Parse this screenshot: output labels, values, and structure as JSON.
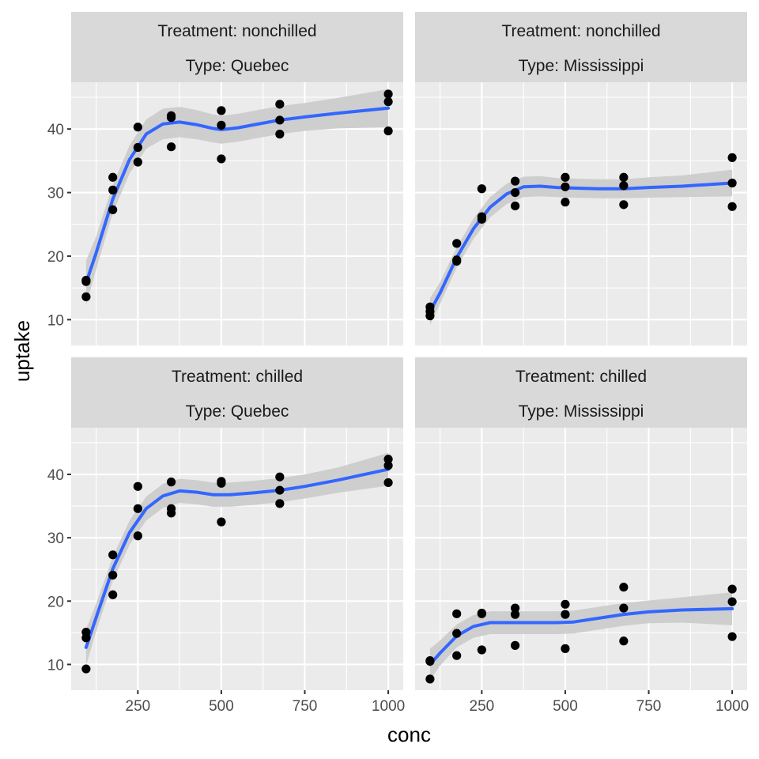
{
  "chart_data": {
    "type": "scatter",
    "xlabel": "conc",
    "ylabel": "uptake",
    "xlim": [
      95,
      1000
    ],
    "ylim": [
      7.8,
      45.5
    ],
    "x_ticks": [
      250,
      500,
      750,
      1000
    ],
    "y_ticks": [
      10,
      20,
      30,
      40
    ],
    "grid": true,
    "smooth": {
      "color": "#3366ff",
      "band_color": "#cccccc"
    },
    "panels": [
      {
        "row": 0,
        "col": 0,
        "strip": [
          "Treatment: nonchilled",
          "Type: Quebec"
        ],
        "points": [
          [
            95,
            16.0
          ],
          [
            95,
            16.2
          ],
          [
            95,
            13.6
          ],
          [
            175,
            30.4
          ],
          [
            175,
            27.3
          ],
          [
            175,
            32.4
          ],
          [
            250,
            34.8
          ],
          [
            250,
            37.1
          ],
          [
            250,
            40.3
          ],
          [
            350,
            37.2
          ],
          [
            350,
            41.8
          ],
          [
            350,
            42.1
          ],
          [
            500,
            35.3
          ],
          [
            500,
            40.6
          ],
          [
            500,
            42.9
          ],
          [
            675,
            39.2
          ],
          [
            675,
            41.4
          ],
          [
            675,
            43.9
          ],
          [
            1000,
            39.7
          ],
          [
            1000,
            44.3
          ],
          [
            1000,
            45.5
          ]
        ],
        "smooth": [
          [
            95,
            15.8
          ],
          [
            125,
            20.5
          ],
          [
            175,
            29.0
          ],
          [
            225,
            35.2
          ],
          [
            275,
            39.2
          ],
          [
            325,
            40.8
          ],
          [
            375,
            41.1
          ],
          [
            425,
            40.7
          ],
          [
            475,
            40.1
          ],
          [
            500,
            39.9
          ],
          [
            550,
            40.2
          ],
          [
            600,
            40.7
          ],
          [
            675,
            41.4
          ],
          [
            750,
            41.9
          ],
          [
            850,
            42.5
          ],
          [
            1000,
            43.3
          ]
        ],
        "se": [
          3.5,
          2.6,
          2.2,
          2.2,
          2.3,
          2.4,
          2.4,
          2.3,
          2.2,
          2.2,
          2.2,
          2.2,
          2.2,
          2.2,
          2.4,
          3.0
        ]
      },
      {
        "row": 0,
        "col": 1,
        "strip": [
          "Treatment: nonchilled",
          "Type: Mississippi"
        ],
        "points": [
          [
            95,
            10.6
          ],
          [
            95,
            12.0
          ],
          [
            95,
            11.3
          ],
          [
            175,
            19.2
          ],
          [
            175,
            22.0
          ],
          [
            175,
            19.4
          ],
          [
            250,
            26.2
          ],
          [
            250,
            30.6
          ],
          [
            250,
            25.8
          ],
          [
            350,
            30.0
          ],
          [
            350,
            31.8
          ],
          [
            350,
            27.9
          ],
          [
            500,
            30.9
          ],
          [
            500,
            32.4
          ],
          [
            500,
            28.5
          ],
          [
            675,
            32.4
          ],
          [
            675,
            31.1
          ],
          [
            675,
            28.1
          ],
          [
            1000,
            35.5
          ],
          [
            1000,
            31.5
          ],
          [
            1000,
            27.8
          ]
        ],
        "smooth": [
          [
            95,
            11.3
          ],
          [
            125,
            14.2
          ],
          [
            175,
            19.8
          ],
          [
            225,
            24.3
          ],
          [
            275,
            27.7
          ],
          [
            325,
            29.8
          ],
          [
            375,
            30.9
          ],
          [
            425,
            31.0
          ],
          [
            475,
            30.8
          ],
          [
            525,
            30.7
          ],
          [
            600,
            30.6
          ],
          [
            675,
            30.6
          ],
          [
            750,
            30.8
          ],
          [
            850,
            31.0
          ],
          [
            1000,
            31.5
          ]
        ],
        "se": [
          2.1,
          1.7,
          1.6,
          1.6,
          1.6,
          1.6,
          1.6,
          1.6,
          1.5,
          1.5,
          1.5,
          1.5,
          1.6,
          1.7,
          2.1
        ]
      },
      {
        "row": 1,
        "col": 0,
        "strip": [
          "Treatment: chilled",
          "Type: Quebec"
        ],
        "points": [
          [
            95,
            14.2
          ],
          [
            95,
            9.3
          ],
          [
            95,
            15.1
          ],
          [
            175,
            24.1
          ],
          [
            175,
            27.3
          ],
          [
            175,
            21.0
          ],
          [
            250,
            30.3
          ],
          [
            250,
            34.6
          ],
          [
            250,
            38.1
          ],
          [
            350,
            34.6
          ],
          [
            350,
            33.9
          ],
          [
            350,
            38.8
          ],
          [
            500,
            32.5
          ],
          [
            500,
            38.9
          ],
          [
            500,
            38.6
          ],
          [
            675,
            35.4
          ],
          [
            675,
            37.5
          ],
          [
            675,
            39.6
          ],
          [
            1000,
            38.7
          ],
          [
            1000,
            41.4
          ],
          [
            1000,
            42.4
          ]
        ],
        "smooth": [
          [
            95,
            12.7
          ],
          [
            125,
            17.4
          ],
          [
            175,
            25.1
          ],
          [
            225,
            30.8
          ],
          [
            275,
            34.6
          ],
          [
            325,
            36.6
          ],
          [
            375,
            37.4
          ],
          [
            425,
            37.2
          ],
          [
            475,
            36.8
          ],
          [
            525,
            36.8
          ],
          [
            600,
            37.1
          ],
          [
            675,
            37.5
          ],
          [
            750,
            38.1
          ],
          [
            850,
            39.1
          ],
          [
            1000,
            40.8
          ]
        ],
        "se": [
          2.9,
          2.2,
          1.9,
          1.9,
          1.9,
          1.9,
          1.9,
          1.9,
          1.9,
          1.9,
          1.9,
          1.9,
          1.9,
          2.0,
          2.6
        ]
      },
      {
        "row": 1,
        "col": 1,
        "strip": [
          "Treatment: chilled",
          "Type: Mississippi"
        ],
        "points": [
          [
            95,
            10.5
          ],
          [
            95,
            7.7
          ],
          [
            95,
            10.6
          ],
          [
            175,
            18.0
          ],
          [
            175,
            11.4
          ],
          [
            175,
            14.9
          ],
          [
            250,
            18.0
          ],
          [
            250,
            12.3
          ],
          [
            250,
            18.1
          ],
          [
            350,
            18.9
          ],
          [
            350,
            13.0
          ],
          [
            350,
            17.9
          ],
          [
            500,
            19.5
          ],
          [
            500,
            12.5
          ],
          [
            500,
            17.9
          ],
          [
            675,
            22.2
          ],
          [
            675,
            13.7
          ],
          [
            675,
            18.9
          ],
          [
            1000,
            21.9
          ],
          [
            1000,
            14.4
          ],
          [
            1000,
            19.9
          ]
        ],
        "smooth": [
          [
            95,
            10.0
          ],
          [
            125,
            11.8
          ],
          [
            175,
            14.5
          ],
          [
            225,
            16.0
          ],
          [
            275,
            16.6
          ],
          [
            325,
            16.6
          ],
          [
            375,
            16.6
          ],
          [
            425,
            16.6
          ],
          [
            475,
            16.6
          ],
          [
            525,
            16.7
          ],
          [
            600,
            17.3
          ],
          [
            675,
            17.9
          ],
          [
            750,
            18.3
          ],
          [
            850,
            18.6
          ],
          [
            1000,
            18.8
          ]
        ],
        "se": [
          2.5,
          2.0,
          1.8,
          1.8,
          1.8,
          1.8,
          1.8,
          1.8,
          1.8,
          1.8,
          1.8,
          1.8,
          1.8,
          2.0,
          2.6
        ]
      }
    ]
  }
}
